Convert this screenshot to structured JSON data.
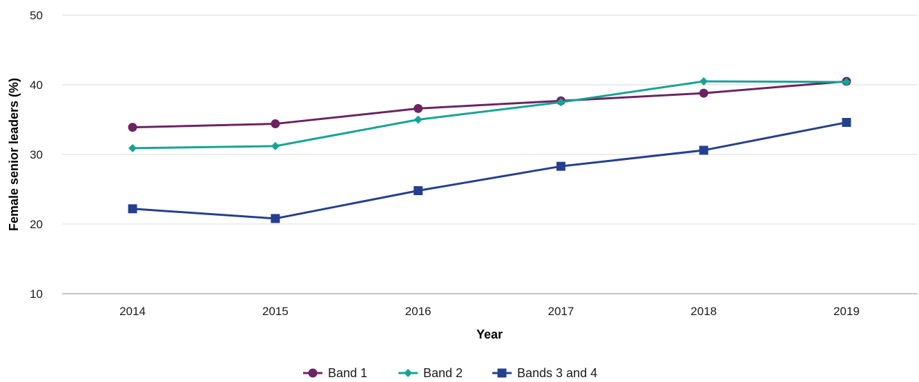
{
  "chart_data": {
    "type": "line",
    "title": "",
    "xlabel": "Year",
    "ylabel": "Female senior leaders (%)",
    "x": [
      "2014",
      "2015",
      "2016",
      "2017",
      "2018",
      "2019"
    ],
    "ylim": [
      10,
      50
    ],
    "yticks": [
      "10",
      "20",
      "30",
      "40",
      "50"
    ],
    "grid": true,
    "legend_position": "bottom",
    "series": [
      {
        "name": "Band 1",
        "values": [
          33.9,
          34.4,
          36.6,
          37.7,
          38.8,
          40.5
        ],
        "color": "#6b2461",
        "marker": "circle"
      },
      {
        "name": "Band 2",
        "values": [
          30.9,
          31.2,
          35.0,
          37.5,
          40.5,
          40.4
        ],
        "color": "#17a393",
        "marker": "diamond"
      },
      {
        "name": "Bands 3 and 4",
        "values": [
          22.2,
          20.8,
          24.8,
          28.3,
          30.6,
          34.6
        ],
        "color": "#253f8e",
        "marker": "square"
      }
    ]
  }
}
